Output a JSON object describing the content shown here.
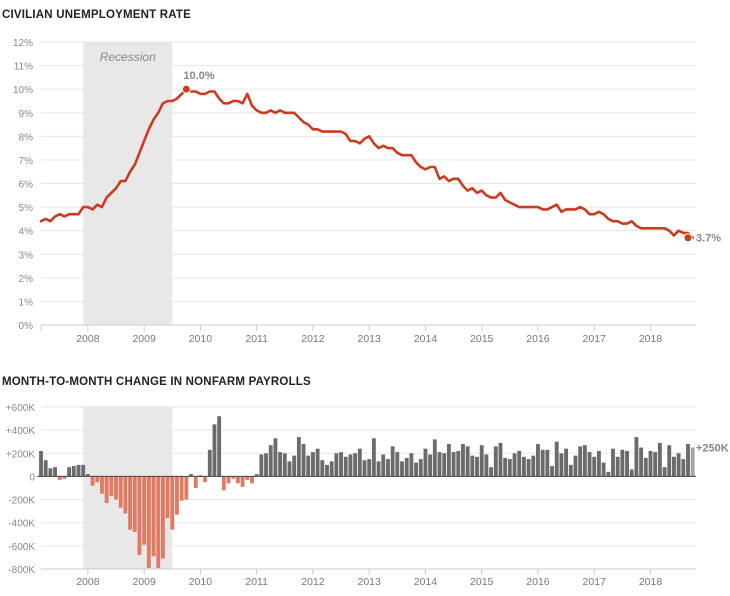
{
  "colors": {
    "unemployment_line": "#cc3a1f",
    "recession_band": "#e8e8e8",
    "gain_bar": "#6b6b6b",
    "loss_bar": "#e07a63",
    "preliminary_bar": "#a5a5a5",
    "grid": "#e6e6e6",
    "text": "#777777"
  },
  "chart_data": [
    {
      "type": "line",
      "title": "CIVILIAN UNEMPLOYMENT RATE",
      "xlabel": "",
      "ylabel": "",
      "x_range": [
        "2007-03",
        "2018-09"
      ],
      "ylim": [
        0,
        12
      ],
      "y_ticks": [
        "0%",
        "1%",
        "2%",
        "3%",
        "4%",
        "5%",
        "6%",
        "7%",
        "8%",
        "9%",
        "10%",
        "11%",
        "12%"
      ],
      "x_ticks": [
        "2008",
        "2009",
        "2010",
        "2011",
        "2012",
        "2013",
        "2014",
        "2015",
        "2016",
        "2017",
        "2018"
      ],
      "grid": true,
      "recession": {
        "label": "Recession",
        "start": "2007-12",
        "end": "2009-06"
      },
      "annotations": [
        {
          "x": "2009-10",
          "y": 10.0,
          "label": "10.0%"
        },
        {
          "x": "2018-09",
          "y": 3.7,
          "label": "3.7%"
        }
      ],
      "series": [
        {
          "start": "2007-03",
          "values": [
            4.4,
            4.5,
            4.4,
            4.6,
            4.7,
            4.6,
            4.7,
            4.7,
            4.7,
            5.0,
            5.0,
            4.9,
            5.1,
            5.0,
            5.4,
            5.6,
            5.8,
            6.1,
            6.1,
            6.5,
            6.8,
            7.3,
            7.8,
            8.3,
            8.7,
            9.0,
            9.4,
            9.5,
            9.5,
            9.6,
            9.8,
            10.0,
            9.9,
            9.9,
            9.8,
            9.8,
            9.9,
            9.9,
            9.6,
            9.4,
            9.4,
            9.5,
            9.5,
            9.4,
            9.8,
            9.3,
            9.1,
            9.0,
            9.0,
            9.1,
            9.0,
            9.1,
            9.0,
            9.0,
            9.0,
            8.8,
            8.6,
            8.5,
            8.3,
            8.3,
            8.2,
            8.2,
            8.2,
            8.2,
            8.2,
            8.1,
            7.8,
            7.8,
            7.7,
            7.9,
            8.0,
            7.7,
            7.5,
            7.6,
            7.5,
            7.5,
            7.3,
            7.2,
            7.2,
            7.2,
            6.9,
            6.7,
            6.6,
            6.7,
            6.7,
            6.2,
            6.3,
            6.1,
            6.2,
            6.2,
            5.9,
            5.7,
            5.8,
            5.6,
            5.7,
            5.5,
            5.4,
            5.4,
            5.6,
            5.3,
            5.2,
            5.1,
            5.0,
            5.0,
            5.0,
            5.0,
            5.0,
            4.9,
            4.9,
            5.0,
            5.1,
            4.8,
            4.9,
            4.9,
            4.9,
            5.0,
            4.9,
            4.7,
            4.7,
            4.8,
            4.7,
            4.5,
            4.4,
            4.4,
            4.3,
            4.3,
            4.4,
            4.2,
            4.1,
            4.1,
            4.1,
            4.1,
            4.1,
            4.1,
            4.0,
            3.8,
            4.0,
            3.9,
            3.9,
            3.7
          ]
        }
      ]
    },
    {
      "type": "bar",
      "title": "MONTH-TO-MONTH CHANGE IN NONFARM PAYROLLS",
      "xlabel": "",
      "ylabel": "",
      "x_range": [
        "2007-03",
        "2018-09"
      ],
      "ylim": [
        -800,
        600
      ],
      "units": "thousands",
      "y_ticks": [
        "+600K",
        "+400K",
        "+200K",
        "0",
        "-200K",
        "-400K",
        "-600K",
        "-800K"
      ],
      "x_ticks": [
        "2008",
        "2009",
        "2010",
        "2011",
        "2012",
        "2013",
        "2014",
        "2015",
        "2016",
        "2017",
        "2018"
      ],
      "grid": true,
      "recession": {
        "start": "2007-12",
        "end": "2009-06"
      },
      "annotations": [
        {
          "x": "2018-09",
          "y": 250,
          "label": "+250K"
        }
      ],
      "series": [
        {
          "start": "2007-03",
          "values": [
            220,
            140,
            70,
            80,
            -30,
            -20,
            80,
            90,
            100,
            100,
            20,
            -80,
            -50,
            -150,
            -230,
            -170,
            -200,
            -270,
            -320,
            -460,
            -480,
            -680,
            -590,
            -790,
            -690,
            -790,
            -710,
            -360,
            -460,
            -330,
            -210,
            -200,
            20,
            -100,
            10,
            -50,
            230,
            450,
            520,
            -120,
            -60,
            -20,
            -60,
            -90,
            -30,
            -60,
            20,
            190,
            200,
            270,
            330,
            210,
            200,
            130,
            180,
            340,
            280,
            180,
            210,
            240,
            140,
            100,
            130,
            200,
            210,
            170,
            190,
            200,
            240,
            140,
            150,
            330,
            130,
            190,
            150,
            260,
            210,
            130,
            160,
            200,
            120,
            150,
            240,
            190,
            320,
            210,
            200,
            280,
            210,
            220,
            280,
            260,
            180,
            170,
            270,
            190,
            80,
            260,
            290,
            160,
            150,
            200,
            220,
            170,
            150,
            180,
            280,
            230,
            230,
            90,
            300,
            200,
            240,
            100,
            180,
            260,
            270,
            210,
            170,
            220,
            120,
            40,
            240,
            170,
            230,
            220,
            60,
            340,
            250,
            160,
            220,
            210,
            290,
            80,
            270,
            170,
            200,
            150,
            280,
            250
          ]
        }
      ]
    }
  ]
}
